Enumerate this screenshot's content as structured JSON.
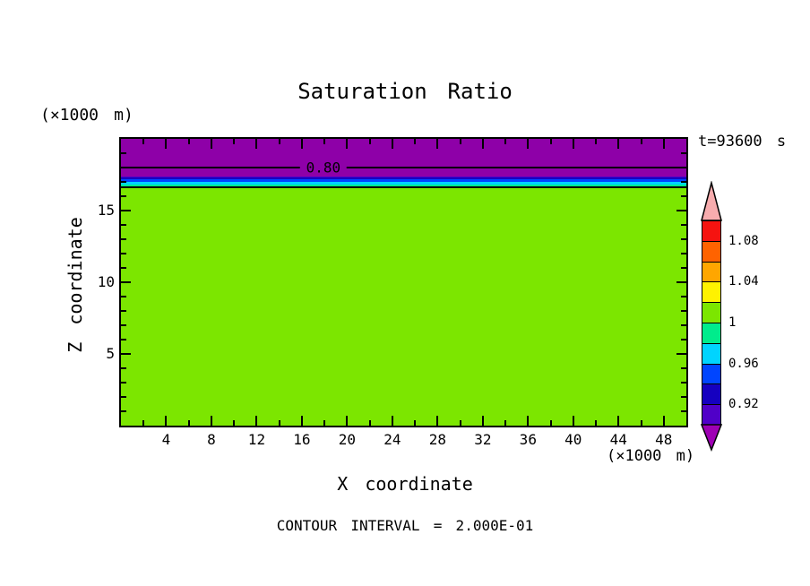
{
  "figure": {
    "title": "Saturation Ratio",
    "time_label": "t=93600 s",
    "y_unit_label": "(×1000 m)",
    "x_unit_label": "(×1000 m)",
    "xlabel": "X coordinate",
    "ylabel": "Z coordinate",
    "footer": "CONTOUR INTERVAL = 2.000E-01"
  },
  "chart_data": {
    "type": "heatmap",
    "subtype": "filled-contour-cross-section",
    "title": "Saturation Ratio",
    "xlabel": "X coordinate",
    "ylabel": "Z coordinate",
    "x_unit": "×1000 m",
    "y_unit": "×1000 m",
    "time_annotation": "t=93600 s",
    "contour_interval_note": "CONTOUR INTERVAL = 2.000E-01",
    "contour_interval": 0.2,
    "xlim": [
      0,
      50
    ],
    "ylim": [
      0,
      20
    ],
    "x_major_ticks": [
      4,
      8,
      12,
      16,
      20,
      24,
      28,
      32,
      36,
      40,
      44,
      48
    ],
    "x_minor_tick_step": 2,
    "y_major_ticks": [
      5,
      10,
      15
    ],
    "y_minor_tick_step": 1,
    "grid": false,
    "bands": [
      {
        "name": "sr-below-0.90",
        "color": "#8E00A8",
        "z_top": 20.0,
        "z_bottom": 17.4
      },
      {
        "name": "sr-0.90-0.92",
        "color": "#5000C8",
        "z_top": 17.4,
        "z_bottom": 17.3
      },
      {
        "name": "sr-0.92-0.94",
        "color": "#1500C0",
        "z_top": 17.3,
        "z_bottom": 17.2
      },
      {
        "name": "sr-0.94-0.96",
        "color": "#0045FF",
        "z_top": 17.2,
        "z_bottom": 17.0
      },
      {
        "name": "sr-0.96-0.98",
        "color": "#00D4FF",
        "z_top": 17.0,
        "z_bottom": 16.82
      },
      {
        "name": "sr-0.98-1.00",
        "color": "#00EC8C",
        "z_top": 16.82,
        "z_bottom": 16.65
      },
      {
        "name": "sr-above-1.00",
        "color": "#7CE600",
        "z_top": 16.65,
        "z_bottom": 0.0
      }
    ],
    "contour_lines": [
      {
        "value": 0.8,
        "label": "0.80",
        "z": 18.0,
        "label_x": 17.9
      },
      {
        "value": 1.0,
        "label": null,
        "z": 16.65
      }
    ],
    "colorbar": {
      "orientation": "vertical",
      "position": "right",
      "arrow_top_color": "#F7ACAE",
      "arrow_bottom_color": "#9E00B4",
      "cells_top_to_bottom": [
        {
          "color": "#F51310",
          "range": [
            1.08,
            1.1
          ]
        },
        {
          "color": "#FF6300",
          "range": [
            1.06,
            1.08
          ]
        },
        {
          "color": "#FFA600",
          "range": [
            1.04,
            1.06
          ]
        },
        {
          "color": "#FFF200",
          "range": [
            1.02,
            1.04
          ]
        },
        {
          "color": "#7CE600",
          "range": [
            1.0,
            1.02
          ]
        },
        {
          "color": "#00EC8C",
          "range": [
            0.98,
            1.0
          ]
        },
        {
          "color": "#00D4FF",
          "range": [
            0.96,
            0.98
          ]
        },
        {
          "color": "#0045FF",
          "range": [
            0.94,
            0.96
          ]
        },
        {
          "color": "#1500C0",
          "range": [
            0.92,
            0.94
          ]
        },
        {
          "color": "#5000C8",
          "range": [
            0.9,
            0.92
          ]
        }
      ],
      "labels": [
        {
          "text": "1.08",
          "boundary_index": 1
        },
        {
          "text": "1.04",
          "boundary_index": 3
        },
        {
          "text": "1",
          "boundary_index": 5
        },
        {
          "text": "0.96",
          "boundary_index": 7
        },
        {
          "text": "0.92",
          "boundary_index": 9
        }
      ]
    }
  }
}
